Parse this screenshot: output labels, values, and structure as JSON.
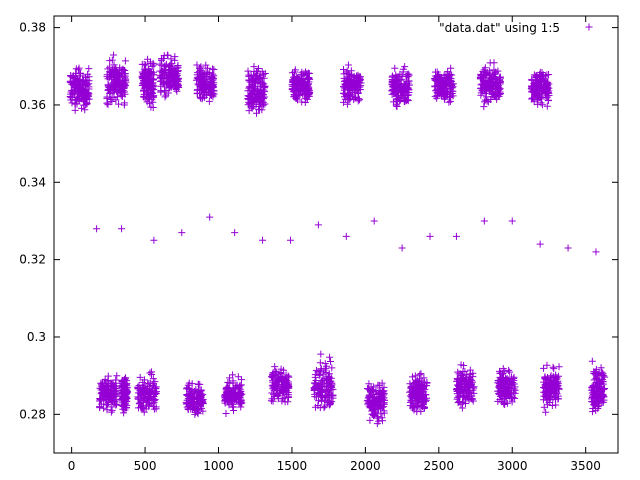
{
  "chart_data": {
    "type": "scatter",
    "title": "",
    "xlabel": "",
    "ylabel": "",
    "xlim": [
      -120,
      3720
    ],
    "ylim": [
      0.27,
      0.383
    ],
    "x_ticks": [
      0,
      500,
      1000,
      1500,
      2000,
      2500,
      3000,
      3500
    ],
    "x_tick_labels": [
      "0",
      "500",
      "1000",
      "1500",
      "2000",
      "2500",
      "3000",
      "3500"
    ],
    "y_ticks": [
      0.28,
      0.3,
      0.32,
      0.34,
      0.36,
      0.38
    ],
    "y_tick_labels": [
      "0.28",
      "0.3",
      "0.32",
      "0.34",
      "0.36",
      "0.38"
    ],
    "grid": false,
    "legend": {
      "position": "top-right",
      "entries": [
        "\"data.dat\" using 1:5"
      ]
    },
    "marker": "+",
    "color": "#9400d3",
    "series": [
      {
        "name": "\"data.dat\" using 1:5",
        "upper_clusters": [
          {
            "x_range": [
              -10,
              120
            ],
            "y_range": [
              0.355,
              0.373
            ]
          },
          {
            "x_range": [
              240,
              370
            ],
            "y_range": [
              0.356,
              0.376
            ]
          },
          {
            "x_range": [
              480,
              560
            ],
            "y_range": [
              0.356,
              0.376
            ]
          },
          {
            "x_range": [
              600,
              730
            ],
            "y_range": [
              0.358,
              0.376
            ]
          },
          {
            "x_range": [
              850,
              970
            ],
            "y_range": [
              0.358,
              0.373
            ]
          },
          {
            "x_range": [
              1200,
              1320
            ],
            "y_range": [
              0.354,
              0.374
            ]
          },
          {
            "x_range": [
              1500,
              1620
            ],
            "y_range": [
              0.357,
              0.373
            ]
          },
          {
            "x_range": [
              1850,
              1970
            ],
            "y_range": [
              0.358,
              0.372
            ]
          },
          {
            "x_range": [
              2180,
              2300
            ],
            "y_range": [
              0.357,
              0.372
            ]
          },
          {
            "x_range": [
              2470,
              2600
            ],
            "y_range": [
              0.358,
              0.372
            ]
          },
          {
            "x_range": [
              2780,
              2920
            ],
            "y_range": [
              0.357,
              0.373
            ]
          },
          {
            "x_range": [
              3130,
              3250
            ],
            "y_range": [
              0.357,
              0.372
            ]
          }
        ],
        "isolated_points": [
          {
            "x": 170,
            "y": 0.328
          },
          {
            "x": 340,
            "y": 0.328
          },
          {
            "x": 560,
            "y": 0.325
          },
          {
            "x": 750,
            "y": 0.327
          },
          {
            "x": 940,
            "y": 0.331
          },
          {
            "x": 1110,
            "y": 0.327
          },
          {
            "x": 1300,
            "y": 0.325
          },
          {
            "x": 1490,
            "y": 0.325
          },
          {
            "x": 1680,
            "y": 0.329
          },
          {
            "x": 1870,
            "y": 0.326
          },
          {
            "x": 2060,
            "y": 0.33
          },
          {
            "x": 2250,
            "y": 0.323
          },
          {
            "x": 2440,
            "y": 0.326
          },
          {
            "x": 2620,
            "y": 0.326
          },
          {
            "x": 2810,
            "y": 0.33
          },
          {
            "x": 3000,
            "y": 0.33
          },
          {
            "x": 3190,
            "y": 0.324
          },
          {
            "x": 3380,
            "y": 0.323
          },
          {
            "x": 3570,
            "y": 0.322
          }
        ],
        "lower_clusters": [
          {
            "x_range": [
              190,
              310
            ],
            "y_range": [
              0.278,
              0.293
            ]
          },
          {
            "x_range": [
              340,
              380
            ],
            "y_range": [
              0.278,
              0.293
            ]
          },
          {
            "x_range": [
              450,
              580
            ],
            "y_range": [
              0.277,
              0.293
            ]
          },
          {
            "x_range": [
              780,
              900
            ],
            "y_range": [
              0.277,
              0.291
            ]
          },
          {
            "x_range": [
              1040,
              1160
            ],
            "y_range": [
              0.277,
              0.293
            ]
          },
          {
            "x_range": [
              1360,
              1480
            ],
            "y_range": [
              0.28,
              0.295
            ]
          },
          {
            "x_range": [
              1650,
              1780
            ],
            "y_range": [
              0.276,
              0.298
            ]
          },
          {
            "x_range": [
              2010,
              2130
            ],
            "y_range": [
              0.275,
              0.292
            ]
          },
          {
            "x_range": [
              2300,
              2420
            ],
            "y_range": [
              0.277,
              0.294
            ]
          },
          {
            "x_range": [
              2620,
              2740
            ],
            "y_range": [
              0.278,
              0.296
            ]
          },
          {
            "x_range": [
              2900,
              3020
            ],
            "y_range": [
              0.279,
              0.295
            ]
          },
          {
            "x_range": [
              3210,
              3320
            ],
            "y_range": [
              0.278,
              0.296
            ]
          },
          {
            "x_range": [
              3540,
              3630
            ],
            "y_range": [
              0.277,
              0.296
            ]
          }
        ]
      }
    ]
  }
}
